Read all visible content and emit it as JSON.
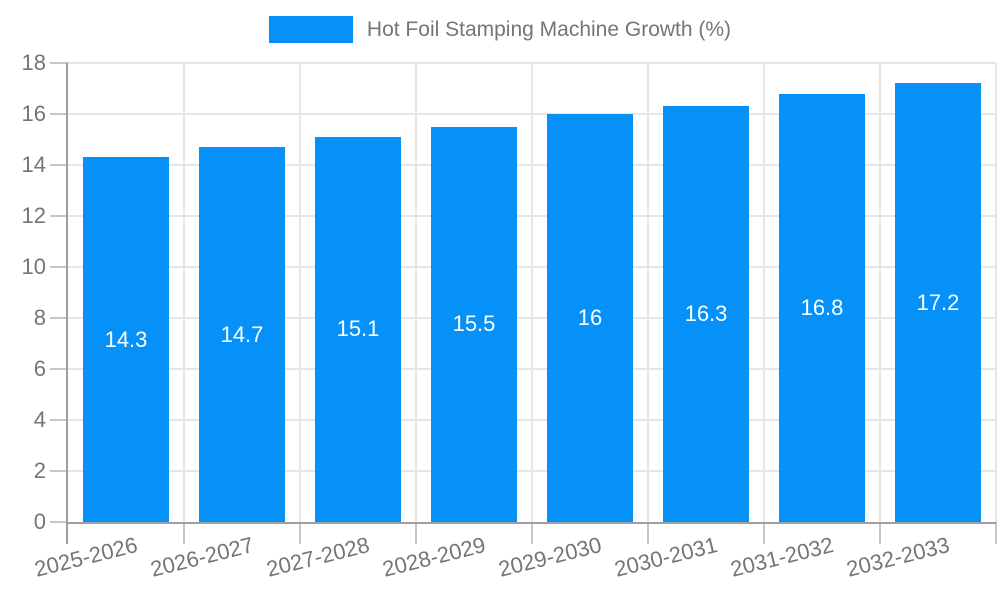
{
  "legend": {
    "label": "Hot Foil Stamping Machine Growth (%)"
  },
  "chart_data": {
    "type": "bar",
    "title": "",
    "series_name": "Hot Foil Stamping Machine Growth (%)",
    "categories": [
      "2025-2026",
      "2026-2027",
      "2027-2028",
      "2028-2029",
      "2029-2030",
      "2030-2031",
      "2031-2032",
      "2032-2033"
    ],
    "values": [
      14.3,
      14.7,
      15.1,
      15.5,
      16,
      16.3,
      16.8,
      17.2
    ],
    "bar_value_labels": [
      "14.3",
      "14.7",
      "15.1",
      "15.5",
      "16",
      "16.3",
      "16.8",
      "17.2"
    ],
    "xlabel": "",
    "ylabel": "",
    "ylim": [
      0,
      18
    ],
    "ytick_step": 2,
    "grid": true,
    "legend_position": "top",
    "colors": {
      "bar": "#0591f7",
      "bar_label": "#ffffff",
      "axis_text": "#757575",
      "grid": "#e6e6e6",
      "axis_line": "#9e9e9e",
      "tick": "#c6c6c6",
      "background": "#ffffff"
    }
  }
}
